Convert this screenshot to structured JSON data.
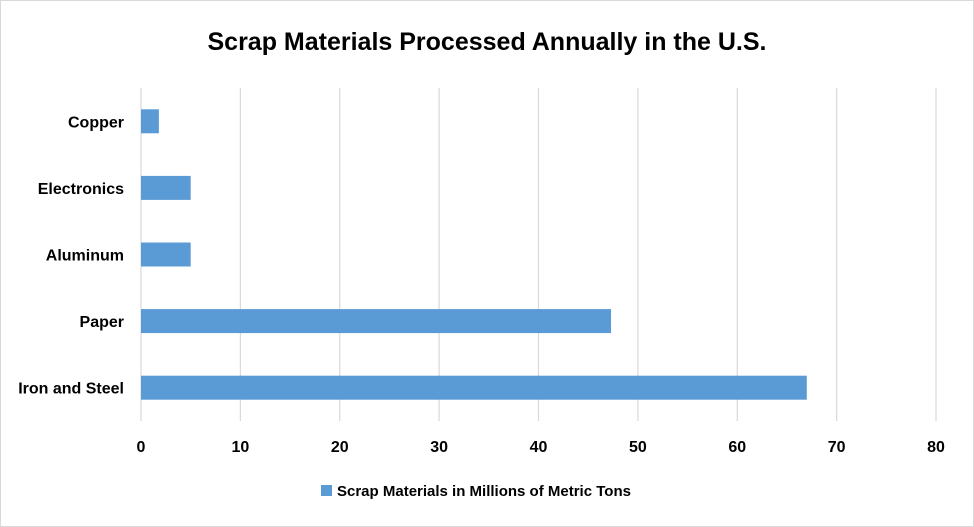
{
  "chart_data": {
    "type": "bar",
    "orientation": "horizontal",
    "title": "Scrap Materials Processed Annually in the U.S.",
    "categories": [
      "Iron and Steel",
      "Paper",
      "Aluminum",
      "Electronics",
      "Copper"
    ],
    "series": [
      {
        "name": "Scrap Materials in Millions of Metric Tons",
        "values": [
          67,
          47.3,
          5,
          5,
          1.8
        ],
        "color": "#5b9bd5"
      }
    ],
    "xlim": [
      0,
      80
    ],
    "xticks": [
      "0",
      "10",
      "20",
      "30",
      "40",
      "50",
      "60",
      "70",
      "80"
    ],
    "grid": "vertical",
    "legend": "bottom"
  }
}
